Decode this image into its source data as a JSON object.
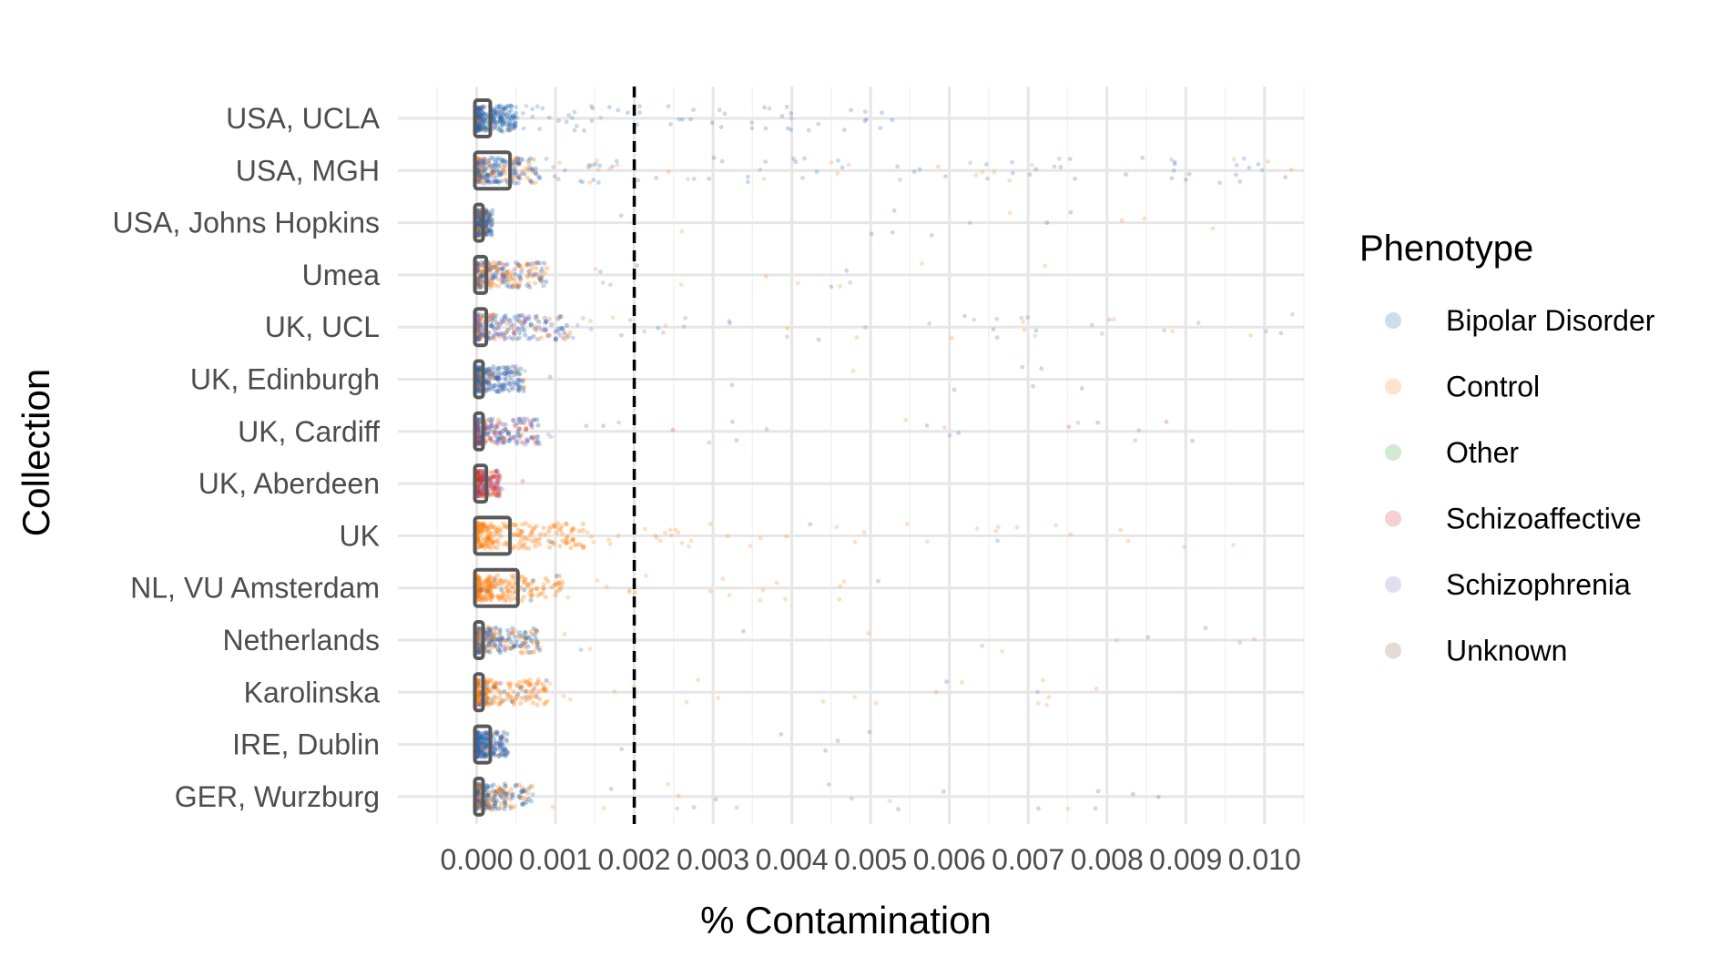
{
  "chart_data": {
    "type": "scatter",
    "title": "",
    "xlabel": "% Contamination",
    "ylabel": "Collection",
    "xlim": [
      -0.001,
      0.0105
    ],
    "x_ticks": [
      "0.000",
      "0.001",
      "0.002",
      "0.003",
      "0.004",
      "0.005",
      "0.006",
      "0.007",
      "0.008",
      "0.009",
      "0.010"
    ],
    "x_tick_values": [
      0.0,
      0.001,
      0.002,
      0.003,
      0.004,
      0.005,
      0.006,
      0.007,
      0.008,
      0.009,
      0.01
    ],
    "threshold_x": 0.002,
    "grid": true,
    "legend_position": "right",
    "legend_title": "Phenotype",
    "series": [
      {
        "name": "Bipolar Disorder",
        "color": "#2166ac"
      },
      {
        "name": "Control",
        "color": "#ff7f0e"
      },
      {
        "name": "Other",
        "color": "#2ca02c"
      },
      {
        "name": "Schizoaffective",
        "color": "#d62728"
      },
      {
        "name": "Schizophrenia",
        "color": "#7b68b5"
      },
      {
        "name": "Unknown",
        "color": "#8c564b"
      }
    ],
    "categories": [
      "USA, UCLA",
      "USA, MGH",
      "USA, Johns Hopkins",
      "Umea",
      "UK, UCL",
      "UK, Edinburgh",
      "UK, Cardiff",
      "UK, Aberdeen",
      "UK",
      "NL, VU Amsterdam",
      "Netherlands",
      "Karolinska",
      "IRE, Dublin",
      "GER, Wurzburg"
    ],
    "collections": [
      {
        "name": "USA, UCLA",
        "box": [
          0.0,
          0.00015
        ],
        "core_max": 0.0005,
        "tail_max": 0.0057,
        "tail_count": 60,
        "mix": {
          "Bipolar Disorder": 0.85,
          "Schizophrenia": 0.1,
          "Control": 0.05
        }
      },
      {
        "name": "USA, MGH",
        "box": [
          0.0,
          0.0004
        ],
        "core_max": 0.0008,
        "tail_max": 0.0104,
        "tail_count": 90,
        "mix": {
          "Bipolar Disorder": 0.6,
          "Control": 0.25,
          "Schizophrenia": 0.1,
          "Unknown": 0.05
        }
      },
      {
        "name": "USA, Johns Hopkins",
        "box": [
          0.0,
          5e-05
        ],
        "core_max": 0.0002,
        "tail_max": 0.0099,
        "tail_count": 14,
        "mix": {
          "Bipolar Disorder": 0.7,
          "Control": 0.2,
          "Schizophrenia": 0.1
        }
      },
      {
        "name": "Umea",
        "box": [
          0.0,
          0.0001
        ],
        "core_max": 0.0009,
        "tail_max": 0.0082,
        "tail_count": 14,
        "mix": {
          "Control": 0.45,
          "Schizophrenia": 0.25,
          "Bipolar Disorder": 0.3
        }
      },
      {
        "name": "UK, UCL",
        "box": [
          0.0,
          0.0001
        ],
        "core_max": 0.0012,
        "tail_max": 0.0104,
        "tail_count": 45,
        "mix": {
          "Schizophrenia": 0.45,
          "Bipolar Disorder": 0.3,
          "Control": 0.25
        }
      },
      {
        "name": "UK, Edinburgh",
        "box": [
          0.0,
          5e-05
        ],
        "core_max": 0.0006,
        "tail_max": 0.0085,
        "tail_count": 10,
        "mix": {
          "Bipolar Disorder": 0.7,
          "Schizophrenia": 0.2,
          "Control": 0.1
        }
      },
      {
        "name": "UK, Cardiff",
        "box": [
          0.0,
          5e-05
        ],
        "core_max": 0.0008,
        "tail_max": 0.0091,
        "tail_count": 22,
        "mix": {
          "Schizophrenia": 0.45,
          "Schizoaffective": 0.15,
          "Bipolar Disorder": 0.3,
          "Control": 0.1
        }
      },
      {
        "name": "UK, Aberdeen",
        "box": [
          0.0,
          0.0001
        ],
        "core_max": 0.0003,
        "tail_max": 0.0006,
        "tail_count": 2,
        "mix": {
          "Schizoaffective": 0.5,
          "Schizophrenia": 0.4,
          "Control": 0.1
        }
      },
      {
        "name": "UK",
        "box": [
          0.0,
          0.0004
        ],
        "core_max": 0.0014,
        "tail_max": 0.0099,
        "tail_count": 40,
        "mix": {
          "Control": 0.97,
          "Bipolar Disorder": 0.03
        }
      },
      {
        "name": "NL, VU Amsterdam",
        "box": [
          0.0,
          0.0005
        ],
        "core_max": 0.0011,
        "tail_max": 0.0069,
        "tail_count": 18,
        "mix": {
          "Control": 0.95,
          "Bipolar Disorder": 0.05
        }
      },
      {
        "name": "Netherlands",
        "box": [
          0.0,
          5e-05
        ],
        "core_max": 0.0008,
        "tail_max": 0.01,
        "tail_count": 12,
        "mix": {
          "Bipolar Disorder": 0.55,
          "Control": 0.35,
          "Schizophrenia": 0.1
        }
      },
      {
        "name": "Karolinska",
        "box": [
          0.0,
          5e-05
        ],
        "core_max": 0.0009,
        "tail_max": 0.0092,
        "tail_count": 20,
        "mix": {
          "Control": 0.85,
          "Bipolar Disorder": 0.1,
          "Schizophrenia": 0.05
        }
      },
      {
        "name": "IRE, Dublin",
        "box": [
          0.0,
          0.00015
        ],
        "core_max": 0.0004,
        "tail_max": 0.0055,
        "tail_count": 5,
        "mix": {
          "Bipolar Disorder": 0.8,
          "Schizophrenia": 0.15,
          "Control": 0.05
        }
      },
      {
        "name": "GER, Wurzburg",
        "box": [
          0.0,
          5e-05
        ],
        "core_max": 0.0007,
        "tail_max": 0.009,
        "tail_count": 22,
        "mix": {
          "Bipolar Disorder": 0.55,
          "Control": 0.35,
          "Schizophrenia": 0.1
        }
      }
    ]
  }
}
